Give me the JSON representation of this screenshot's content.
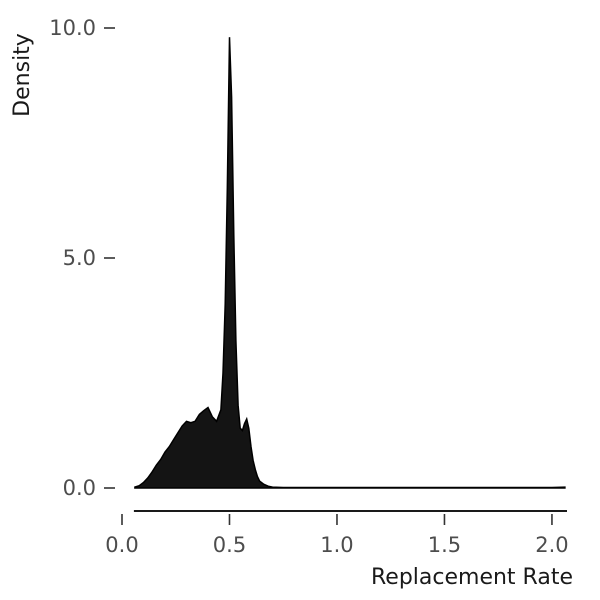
{
  "chart_data": {
    "type": "area",
    "title": "",
    "xlabel": "Replacement Rate",
    "ylabel": "Density",
    "xlim": [
      0.0,
      2.07
    ],
    "ylim": [
      0.0,
      10.0
    ],
    "x_ticks": [
      0.0,
      0.5,
      1.0,
      1.5,
      2.0
    ],
    "x_tick_labels": [
      "0.0",
      "0.5",
      "1.0",
      "1.5",
      "2.0"
    ],
    "y_ticks": [
      0.0,
      5.0,
      10.0
    ],
    "y_tick_labels": [
      "0.0",
      "5.0",
      "10.0"
    ],
    "grid": false,
    "fill_color": "#141414",
    "series": [
      {
        "x": [
          0.06,
          0.08,
          0.1,
          0.12,
          0.14,
          0.16,
          0.18,
          0.2,
          0.22,
          0.24,
          0.26,
          0.28,
          0.3,
          0.32,
          0.34,
          0.36,
          0.38,
          0.4,
          0.42,
          0.44,
          0.46,
          0.47,
          0.48,
          0.49,
          0.5,
          0.51,
          0.52,
          0.53,
          0.54,
          0.55,
          0.56,
          0.57,
          0.58,
          0.59,
          0.6,
          0.61,
          0.62,
          0.63,
          0.64,
          0.66,
          0.68,
          0.7,
          0.75,
          0.8,
          0.9,
          1.0,
          1.1,
          1.2,
          1.4,
          1.6,
          1.8,
          2.0,
          2.06
        ],
        "y": [
          0.02,
          0.05,
          0.12,
          0.22,
          0.35,
          0.5,
          0.62,
          0.78,
          0.9,
          1.05,
          1.2,
          1.35,
          1.45,
          1.42,
          1.45,
          1.6,
          1.68,
          1.75,
          1.55,
          1.45,
          1.7,
          2.5,
          4.0,
          6.5,
          9.8,
          8.5,
          5.5,
          3.2,
          1.8,
          1.3,
          1.25,
          1.4,
          1.5,
          1.3,
          0.9,
          0.6,
          0.4,
          0.25,
          0.15,
          0.08,
          0.04,
          0.02,
          0.01,
          0.01,
          0.01,
          0.01,
          0.01,
          0.01,
          0.01,
          0.01,
          0.01,
          0.01,
          0.02
        ]
      }
    ]
  }
}
